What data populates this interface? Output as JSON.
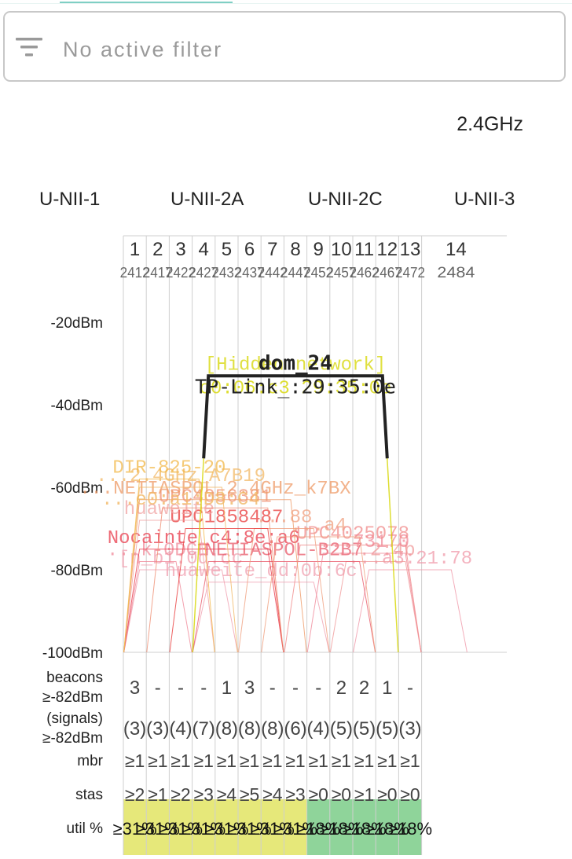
{
  "filter": {
    "text": "No active filter",
    "icon": "filter-list-icon"
  },
  "band": "2.4GHz",
  "unii_labels": [
    "U-NII-1",
    "U-NII-2A",
    "U-NII-2C",
    "U-NII-3"
  ],
  "channels": [
    {
      "ch": "1",
      "freq": "2412"
    },
    {
      "ch": "2",
      "freq": "2417"
    },
    {
      "ch": "3",
      "freq": "2422"
    },
    {
      "ch": "4",
      "freq": "2427"
    },
    {
      "ch": "5",
      "freq": "2432"
    },
    {
      "ch": "6",
      "freq": "2437"
    },
    {
      "ch": "7",
      "freq": "2442"
    },
    {
      "ch": "8",
      "freq": "2447"
    },
    {
      "ch": "9",
      "freq": "2452"
    },
    {
      "ch": "10",
      "freq": "2457"
    },
    {
      "ch": "11",
      "freq": "2462"
    },
    {
      "ch": "12",
      "freq": "2467"
    },
    {
      "ch": "13",
      "freq": "2472"
    },
    {
      "ch": "14",
      "freq": "2484"
    }
  ],
  "y_axis": [
    "-20dBm",
    "-40dBm",
    "-60dBm",
    "-80dBm",
    "-100dBm"
  ],
  "networks": [
    {
      "name": "dom_24",
      "mac": "TP-Link_:29:35:0e",
      "ch_from": 4,
      "ch_to": 12,
      "dbm": -33,
      "color": "#222222",
      "weight": 4,
      "highlight": true
    },
    {
      "name": "[Hidden network]",
      "mac": "c0:06:c3:29:35:0e",
      "ch_from": 4,
      "ch_to": 12,
      "dbm": -33,
      "color": "#d6d600",
      "weight": 1.5,
      "highlight": false
    },
    {
      "name": "DIR-825-20",
      "mac": "",
      "ch_from": 1,
      "ch_to": 4,
      "dbm": -58,
      "color": "#f2b84a",
      "weight": 1,
      "highlight": false
    },
    {
      "name": "...2.4GHz_A7B19",
      "mac": "...e0:a1:D8:C4",
      "ch_from": 1,
      "ch_to": 5,
      "dbm": -60,
      "color": "#f1b865",
      "weight": 1,
      "highlight": false
    },
    {
      "name": "...NETIASPOL_2.4GHz_k7BX",
      "mac": "",
      "ch_from": 1,
      "ch_to": 8,
      "dbm": -63,
      "color": "#ee9a66",
      "weight": 1,
      "highlight": false
    },
    {
      "name": "UPC4056381",
      "mac": "",
      "ch_from": 2,
      "ch_to": 7,
      "dbm": -65,
      "color": "#ef8f73",
      "weight": 1,
      "highlight": false
    },
    {
      "name": "huaweite",
      "mac": "",
      "ch_from": 1,
      "ch_to": 4,
      "dbm": -68,
      "color": "#f0a3a3",
      "weight": 1,
      "highlight": false
    },
    {
      "name": "UPC1858487",
      "mac": "",
      "ch_from": 3,
      "ch_to": 7,
      "dbm": -70,
      "color": "#e83a3a",
      "weight": 1,
      "highlight": false
    },
    {
      "name": "...88",
      "mac": "",
      "ch_from": 6,
      "ch_to": 9,
      "dbm": -70,
      "color": "#f0a080",
      "weight": 1,
      "highlight": false
    },
    {
      "name": "...a4",
      "mac": "",
      "ch_from": 7,
      "ch_to": 11,
      "dbm": -72,
      "color": "#f0a080",
      "weight": 1,
      "highlight": false
    },
    {
      "name": "Nocainte_c4:8e:a6",
      "mac": "",
      "ch_from": 1,
      "ch_to": 7,
      "dbm": -75,
      "color": "#e83a4a",
      "weight": 1,
      "highlight": false
    },
    {
      "name": "...k-0DCB",
      "mac": "",
      "ch_from": 1,
      "ch_to": 3,
      "dbm": -78,
      "color": "#f08a9a",
      "weight": 1,
      "highlight": false
    },
    {
      "name": "UPC4025078",
      "mac": "",
      "ch_from": 8,
      "ch_to": 13,
      "dbm": -74,
      "color": "#f08a8a",
      "weight": 1,
      "highlight": false
    },
    {
      "name": "...73170",
      "mac": "",
      "ch_from": 9,
      "ch_to": 13,
      "dbm": -76,
      "color": "#f08a9a",
      "weight": 1,
      "highlight": false
    },
    {
      "name": "NETIASPOL-B2B7",
      "mac": "",
      "ch_from": 4,
      "ch_to": 11,
      "dbm": -78,
      "color": "#e85a6a",
      "weight": 1,
      "highlight": false
    },
    {
      "name": "...2:4b",
      "mac": "",
      "ch_from": 10,
      "ch_to": 13,
      "dbm": -78,
      "color": "#f09a9a",
      "weight": 1,
      "highlight": false
    },
    {
      "name": "[n_b1:0d:cc",
      "mac": "",
      "ch_from": 1,
      "ch_to": 5,
      "dbm": -80,
      "color": "#f0a0b0",
      "weight": 1,
      "highlight": false
    },
    {
      "name": "...a3:21:78",
      "mac": "",
      "ch_from": 11,
      "ch_to": 14,
      "dbm": -80,
      "color": "#f09aaa",
      "weight": 1,
      "highlight": false
    },
    {
      "name": "huaweite_dd:0b:6c",
      "mac": "",
      "ch_from": 4,
      "ch_to": 9,
      "dbm": -83,
      "color": "#f0a0b0",
      "weight": 1,
      "highlight": false
    }
  ],
  "stats": {
    "beacons_label": "beacons\n≥-82dBm",
    "signals_label": "(signals)\n≥-82dBm",
    "mbr_label": "mbr",
    "stas_label": "stas",
    "util_label": "util %",
    "beacons": [
      "3",
      "-",
      "-",
      "-",
      "1",
      "3",
      "-",
      "-",
      "-",
      "2",
      "2",
      "1",
      "-"
    ],
    "signals": [
      "(3)",
      "(3)",
      "(4)",
      "(7)",
      "(8)",
      "(8)",
      "(8)",
      "(6)",
      "(4)",
      "(5)",
      "(5)",
      "(5)",
      "(3)"
    ],
    "mbr": [
      "≥1",
      "≥1",
      "≥1",
      "≥1",
      "≥1",
      "≥1",
      "≥1",
      "≥1",
      "≥1",
      "≥1",
      "≥1",
      "≥1",
      "≥1"
    ],
    "stas": [
      "≥2",
      "≥1",
      "≥2",
      "≥3",
      "≥4",
      "≥5",
      "≥4",
      "≥3",
      "≥0",
      "≥0",
      "≥1",
      "≥0",
      "≥0"
    ],
    "util": [
      "≥31%",
      "≥31%",
      "≥31%",
      "≥31%",
      "≥31%",
      "≥31%",
      "≥31%",
      "≥31%",
      "≥18%",
      "≥18%",
      "≥18%",
      "≥18%",
      "≥18%"
    ],
    "util_colors": [
      "#e6e87a",
      "#e6e87a",
      "#e6e87a",
      "#e6e87a",
      "#e6e87a",
      "#e6e87a",
      "#e6e87a",
      "#e6e87a",
      "#8fd49a",
      "#8fd49a",
      "#8fd49a",
      "#8fd49a",
      "#8fd49a"
    ]
  }
}
